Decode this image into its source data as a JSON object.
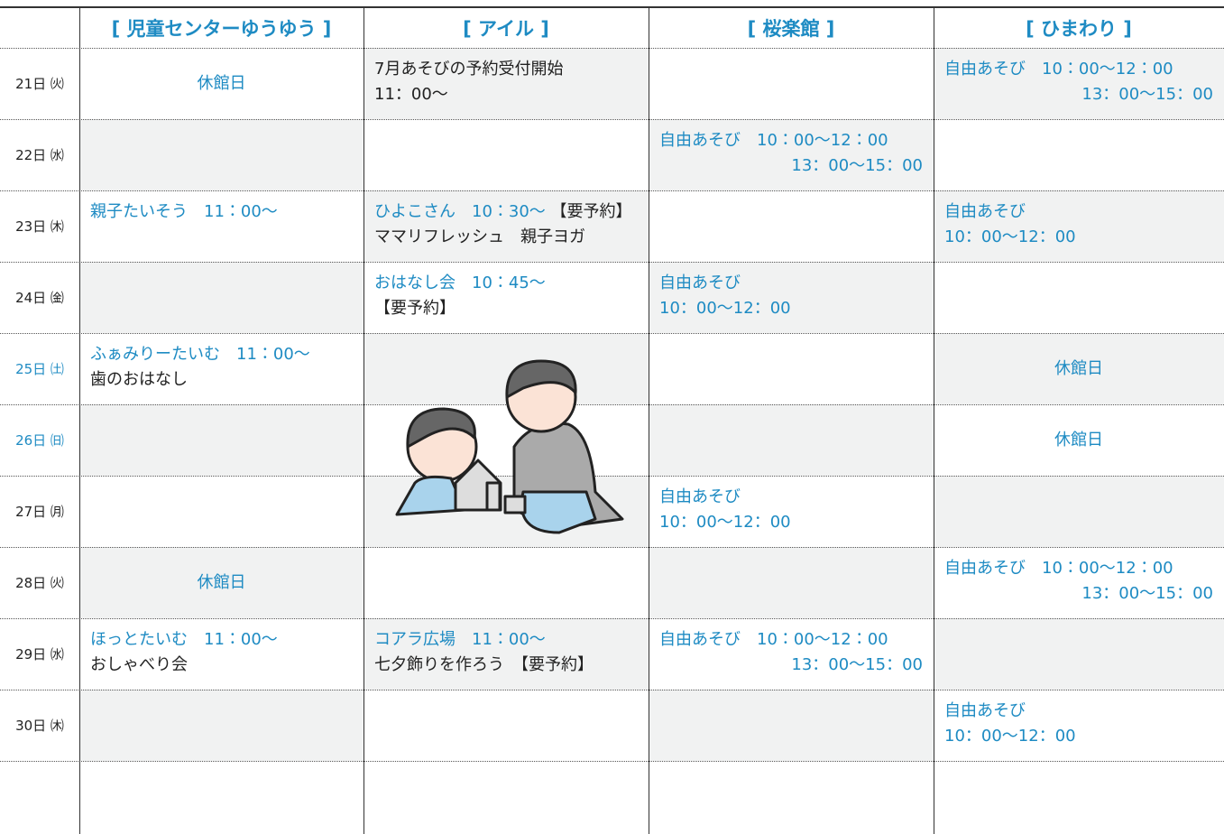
{
  "table": {
    "headers": [
      "[ 児童センターゆうゆう ]",
      "[ アイル ]",
      "[ 桜楽館 ]",
      "[ ひまわり ]"
    ],
    "header_color": "#1e8bc3",
    "rows": [
      {
        "day": "21日 ㈫",
        "day_color": "#222222",
        "cells": [
          [
            {
              "align": "center",
              "spans": [
                {
                  "text": "休館日",
                  "color": "#1e8bc3"
                }
              ]
            }
          ],
          [
            {
              "spans": [
                {
                  "text": "7月あそびの予約受付開始",
                  "color": "#222222"
                }
              ]
            },
            {
              "spans": [
                {
                  "text": "11：00〜",
                  "color": "#222222"
                }
              ]
            }
          ],
          [],
          [
            {
              "spans": [
                {
                  "text": "自由あそび　10：00〜12：00",
                  "color": "#1e8bc3"
                }
              ]
            },
            {
              "align": "right",
              "spans": [
                {
                  "text": "13：00〜15：00",
                  "color": "#1e8bc3"
                }
              ]
            }
          ]
        ]
      },
      {
        "day": "22日 ㈬",
        "day_color": "#222222",
        "cells": [
          [],
          [],
          [
            {
              "spans": [
                {
                  "text": "自由あそび　10：00〜12：00",
                  "color": "#1e8bc3"
                }
              ]
            },
            {
              "align": "right",
              "spans": [
                {
                  "text": "13：00〜15：00",
                  "color": "#1e8bc3"
                }
              ]
            }
          ],
          []
        ]
      },
      {
        "day": "23日 ㈭",
        "day_color": "#222222",
        "cells": [
          [
            {
              "spans": [
                {
                  "text": "親子たいそう　11：00〜",
                  "color": "#1e8bc3"
                }
              ]
            }
          ],
          [
            {
              "spans": [
                {
                  "text": "ひよこさん　10：30〜 ",
                  "color": "#1e8bc3"
                },
                {
                  "text": "【要予約】",
                  "color": "#222222"
                }
              ]
            },
            {
              "spans": [
                {
                  "text": "ママリフレッシュ　親子ヨガ",
                  "color": "#222222"
                }
              ]
            }
          ],
          [],
          [
            {
              "spans": [
                {
                  "text": "自由あそび",
                  "color": "#1e8bc3"
                }
              ]
            },
            {
              "spans": [
                {
                  "text": "10：00〜12：00",
                  "color": "#1e8bc3"
                }
              ]
            }
          ]
        ]
      },
      {
        "day": "24日 ㈮",
        "day_color": "#222222",
        "cells": [
          [],
          [
            {
              "spans": [
                {
                  "text": "おはなし会　10：45〜",
                  "color": "#1e8bc3"
                }
              ]
            },
            {
              "spans": [
                {
                  "text": "【要予約】",
                  "color": "#222222"
                }
              ]
            }
          ],
          [
            {
              "spans": [
                {
                  "text": "自由あそび",
                  "color": "#1e8bc3"
                }
              ]
            },
            {
              "spans": [
                {
                  "text": "10：00〜12：00",
                  "color": "#1e8bc3"
                }
              ]
            }
          ],
          []
        ]
      },
      {
        "day": "25日 ㈯",
        "day_color": "#1e8bc3",
        "cells": [
          [
            {
              "spans": [
                {
                  "text": "ふぁみりーたいむ　11：00〜",
                  "color": "#1e8bc3"
                }
              ]
            },
            {
              "spans": [
                {
                  "text": "歯のおはなし",
                  "color": "#222222"
                }
              ]
            }
          ],
          [],
          [],
          [
            {
              "align": "center",
              "spans": [
                {
                  "text": "休館日",
                  "color": "#1e8bc3"
                }
              ]
            }
          ]
        ]
      },
      {
        "day": "26日 ㈰",
        "day_color": "#1e8bc3",
        "cells": [
          [],
          [],
          [],
          [
            {
              "align": "center",
              "spans": [
                {
                  "text": "休館日",
                  "color": "#1e8bc3"
                }
              ]
            }
          ]
        ]
      },
      {
        "day": "27日 ㈪",
        "day_color": "#222222",
        "cells": [
          [],
          [],
          [
            {
              "spans": [
                {
                  "text": "自由あそび",
                  "color": "#1e8bc3"
                }
              ]
            },
            {
              "spans": [
                {
                  "text": "10：00〜12：00",
                  "color": "#1e8bc3"
                }
              ]
            }
          ],
          []
        ]
      },
      {
        "day": "28日 ㈫",
        "day_color": "#222222",
        "cells": [
          [
            {
              "align": "center",
              "spans": [
                {
                  "text": "休館日",
                  "color": "#1e8bc3"
                }
              ]
            }
          ],
          [],
          [],
          [
            {
              "spans": [
                {
                  "text": "自由あそび　10：00〜12：00",
                  "color": "#1e8bc3"
                }
              ]
            },
            {
              "align": "right",
              "spans": [
                {
                  "text": "13：00〜15：00",
                  "color": "#1e8bc3"
                }
              ]
            }
          ]
        ]
      },
      {
        "day": "29日 ㈬",
        "day_color": "#222222",
        "cells": [
          [
            {
              "spans": [
                {
                  "text": "ほっとたいむ　11：00〜",
                  "color": "#1e8bc3"
                }
              ]
            },
            {
              "spans": [
                {
                  "text": "おしゃべり会",
                  "color": "#222222"
                }
              ]
            }
          ],
          [
            {
              "spans": [
                {
                  "text": "コアラ広場　11：00〜",
                  "color": "#1e8bc3"
                }
              ]
            },
            {
              "spans": [
                {
                  "text": "七夕飾りを作ろう　【要予約】",
                  "color": "#222222"
                }
              ]
            }
          ],
          [
            {
              "spans": [
                {
                  "text": "自由あそび　10：00〜12：00",
                  "color": "#1e8bc3"
                }
              ]
            },
            {
              "align": "right",
              "spans": [
                {
                  "text": "13：00〜15：00",
                  "color": "#1e8bc3"
                }
              ]
            }
          ],
          []
        ]
      },
      {
        "day": "30日 ㈭",
        "day_color": "#222222",
        "cells": [
          [],
          [],
          [],
          [
            {
              "spans": [
                {
                  "text": "自由あそび",
                  "color": "#1e8bc3"
                }
              ]
            },
            {
              "spans": [
                {
                  "text": "10：00〜12：00",
                  "color": "#1e8bc3"
                }
              ]
            }
          ]
        ]
      }
    ]
  }
}
